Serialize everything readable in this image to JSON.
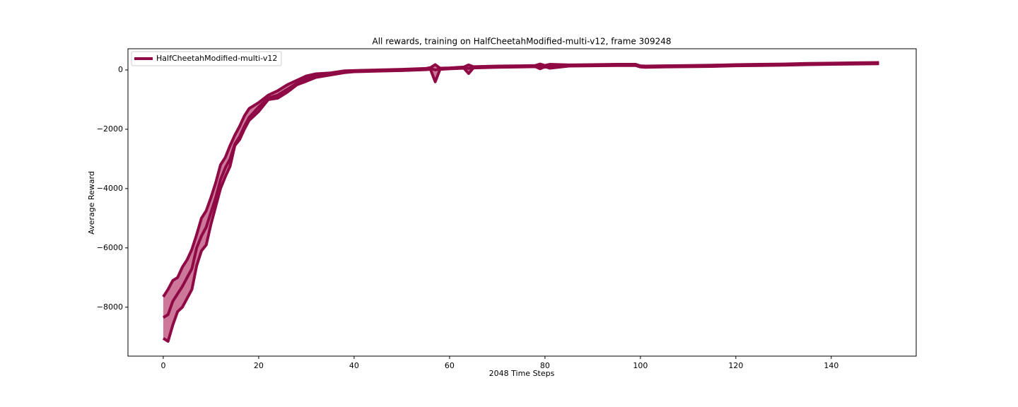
{
  "chart_data": {
    "type": "line",
    "title": "All rewards, training on HalfCheetahModified-multi-v12, frame 309248",
    "xlabel": "2048 Time Steps",
    "ylabel": "Average Reward",
    "x": [
      0,
      1,
      2,
      3,
      4,
      5,
      6,
      7,
      8,
      9,
      10,
      11,
      12,
      13,
      14,
      15,
      16,
      17,
      18,
      20,
      22,
      24,
      26,
      28,
      30,
      32,
      35,
      38,
      40,
      45,
      50,
      55,
      56,
      57,
      58,
      60,
      63,
      64,
      65,
      70,
      75,
      78,
      79,
      80,
      81,
      85,
      90,
      95,
      99,
      100,
      101,
      105,
      110,
      115,
      120,
      125,
      130,
      135,
      140,
      145,
      150
    ],
    "series": [
      {
        "name": "HalfCheetahModified-multi-v12",
        "color": "#8f0a45",
        "band_color": "#c4608a",
        "values": [
          -8350,
          -8250,
          -7800,
          -7550,
          -7300,
          -7000,
          -6700,
          -6000,
          -5600,
          -5300,
          -4800,
          -4300,
          -3700,
          -3300,
          -3000,
          -2500,
          -2250,
          -1900,
          -1600,
          -1250,
          -950,
          -850,
          -650,
          -450,
          -300,
          -180,
          -130,
          -60,
          -40,
          -20,
          0,
          30,
          50,
          0,
          40,
          60,
          80,
          50,
          90,
          110,
          120,
          130,
          110,
          130,
          120,
          150,
          160,
          170,
          170,
          120,
          110,
          120,
          130,
          140,
          160,
          170,
          180,
          200,
          210,
          220,
          230
        ],
        "upper": [
          -7650,
          -7400,
          -7100,
          -7000,
          -6650,
          -6400,
          -6050,
          -5550,
          -5000,
          -4750,
          -4300,
          -3800,
          -3200,
          -2950,
          -2550,
          -2200,
          -1900,
          -1550,
          -1300,
          -1100,
          -850,
          -700,
          -500,
          -350,
          -200,
          -130,
          -100,
          -30,
          -20,
          0,
          20,
          50,
          80,
          180,
          60,
          70,
          100,
          170,
          110,
          130,
          140,
          150,
          200,
          150,
          190,
          170,
          180,
          190,
          190,
          140,
          130,
          140,
          150,
          160,
          180,
          190,
          200,
          220,
          230,
          240,
          250
        ],
        "lower": [
          -9050,
          -9150,
          -8600,
          -8150,
          -8000,
          -7700,
          -7400,
          -6600,
          -6100,
          -5900,
          -5200,
          -4600,
          -4000,
          -3600,
          -3250,
          -2550,
          -2350,
          -2000,
          -1700,
          -1400,
          -1000,
          -950,
          -750,
          -500,
          -380,
          -250,
          -170,
          -90,
          -60,
          -40,
          -20,
          10,
          20,
          -400,
          20,
          40,
          60,
          -120,
          70,
          90,
          100,
          110,
          40,
          110,
          60,
          130,
          140,
          150,
          150,
          100,
          90,
          100,
          110,
          120,
          140,
          150,
          160,
          180,
          190,
          200,
          210
        ]
      }
    ],
    "xlim": [
      -7.4,
      157.8
    ],
    "ylim": [
      -9650,
      715
    ],
    "xticks": [
      0,
      20,
      40,
      60,
      80,
      100,
      120,
      140
    ],
    "yticks": [
      {
        "value": -8000,
        "label": "−8000"
      },
      {
        "value": -6000,
        "label": "−6000"
      },
      {
        "value": -4000,
        "label": "−4000"
      },
      {
        "value": -2000,
        "label": "−2000"
      },
      0
    ],
    "legend": "upper left"
  }
}
